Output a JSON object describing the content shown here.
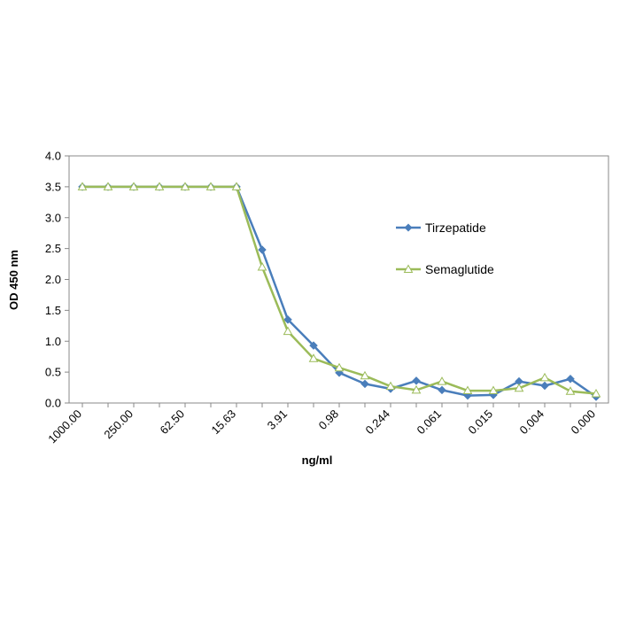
{
  "chart_data": {
    "type": "line",
    "title": "",
    "xlabel": "ng/ml",
    "ylabel": "OD  450 nm",
    "ylim": [
      0,
      4
    ],
    "yticks": [
      "0.0",
      "0.5",
      "1.0",
      "1.5",
      "2.0",
      "2.5",
      "3.0",
      "3.5",
      "4.0"
    ],
    "grid": false,
    "legend_position": "right",
    "xtick_labels": [
      {
        "index": 0,
        "label": "1000.00"
      },
      {
        "index": 2,
        "label": "250.00"
      },
      {
        "index": 4,
        "label": "62.50"
      },
      {
        "index": 6,
        "label": "15.63"
      },
      {
        "index": 8,
        "label": "3.91"
      },
      {
        "index": 10,
        "label": "0.98"
      },
      {
        "index": 12,
        "label": "0.244"
      },
      {
        "index": 14,
        "label": "0.061"
      },
      {
        "index": 16,
        "label": "0.015"
      },
      {
        "index": 18,
        "label": "0.004"
      },
      {
        "index": 20,
        "label": "0.000"
      }
    ],
    "point_count": 21,
    "series": [
      {
        "name": "Tirzepatide",
        "color": "#4a7ebb",
        "marker": "diamond",
        "values": [
          3.5,
          3.5,
          3.5,
          3.5,
          3.5,
          3.5,
          3.5,
          2.48,
          1.35,
          0.93,
          0.49,
          0.31,
          0.23,
          0.36,
          0.21,
          0.12,
          0.13,
          0.35,
          0.28,
          0.39,
          0.1
        ]
      },
      {
        "name": "Semaglutide",
        "color": "#9bbb59",
        "marker": "triangle",
        "values": [
          3.5,
          3.5,
          3.5,
          3.5,
          3.5,
          3.5,
          3.5,
          2.2,
          1.16,
          0.72,
          0.57,
          0.44,
          0.27,
          0.21,
          0.35,
          0.2,
          0.2,
          0.24,
          0.41,
          0.19,
          0.15
        ]
      }
    ]
  }
}
